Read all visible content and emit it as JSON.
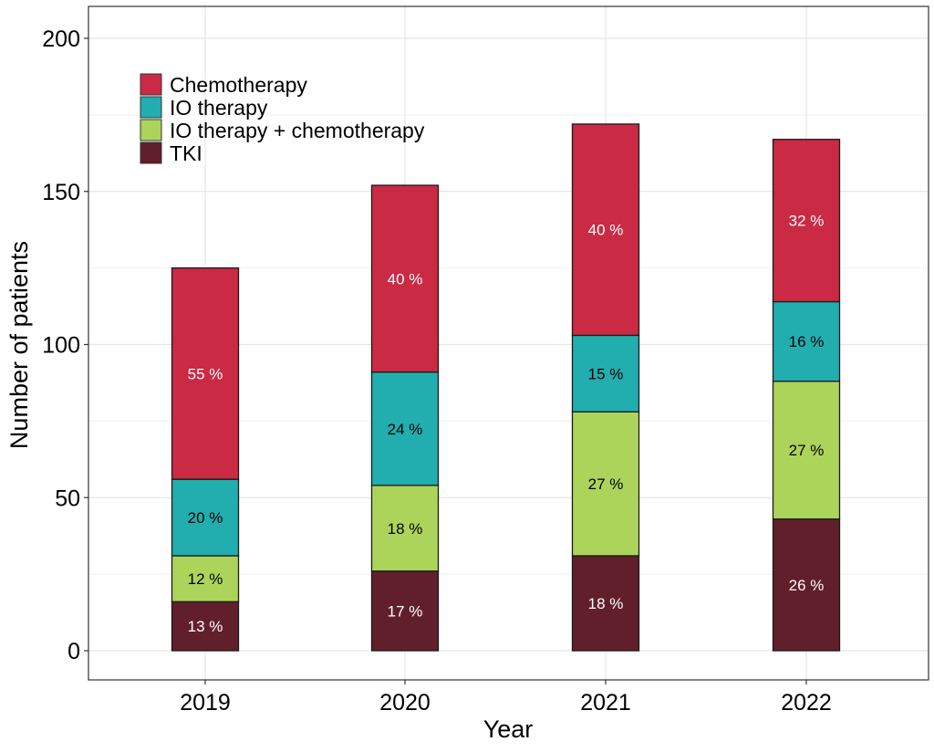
{
  "chart_data": {
    "type": "bar",
    "stacked": true,
    "xlabel": "Year",
    "ylabel": "Number of patients",
    "ylim": [
      0,
      200
    ],
    "yticks": [
      0,
      50,
      100,
      150,
      200
    ],
    "grid": true,
    "legend_position": "top-left",
    "categories": [
      "2019",
      "2020",
      "2021",
      "2022"
    ],
    "series": [
      {
        "name": "TKI",
        "color": "#611f2c",
        "label_color": "#ffffff",
        "values": [
          16,
          26,
          31,
          43
        ],
        "labels": [
          "13 %",
          "17 %",
          "18 %",
          "26 %"
        ]
      },
      {
        "name": "IO therapy + chemotherapy",
        "color": "#acd45a",
        "label_color": "#000000",
        "values": [
          15,
          28,
          47,
          45
        ],
        "labels": [
          "12 %",
          "18 %",
          "27 %",
          "27 %"
        ]
      },
      {
        "name": "IO therapy",
        "color": "#22adae",
        "label_color": "#000000",
        "values": [
          25,
          37,
          25,
          26
        ],
        "labels": [
          "20 %",
          "24 %",
          "15 %",
          "16 %"
        ]
      },
      {
        "name": "Chemotherapy",
        "color": "#cb2a44",
        "label_color": "#ffffff",
        "values": [
          69,
          61,
          69,
          53
        ],
        "labels": [
          "55 %",
          "40 %",
          "40 %",
          "32 %"
        ]
      }
    ],
    "legend_order": [
      "Chemotherapy",
      "IO therapy",
      "IO therapy + chemotherapy",
      "TKI"
    ]
  }
}
